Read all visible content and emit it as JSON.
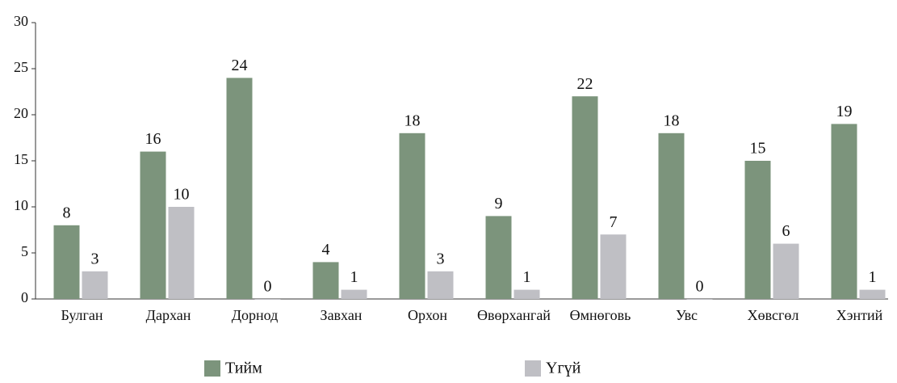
{
  "chart_data": {
    "type": "bar",
    "categories": [
      "Булган",
      "Дархан",
      "Дорнод",
      "Завхан",
      "Орхон",
      "Өвөрхангай",
      "Өмнөговь",
      "Увс",
      "Хөвсгөл",
      "Хэнтий"
    ],
    "series": [
      {
        "name": "Тийм",
        "color": "#7c947c",
        "values": [
          8,
          16,
          24,
          4,
          18,
          9,
          22,
          18,
          15,
          19
        ]
      },
      {
        "name": "Үгүй",
        "color": "#bfbfc4",
        "values": [
          3,
          10,
          0,
          1,
          3,
          1,
          7,
          0,
          6,
          1
        ]
      }
    ],
    "ylim": [
      0,
      30
    ],
    "yticks": [
      0,
      5,
      10,
      15,
      20,
      25,
      30
    ],
    "grid": false,
    "legend": "bottom"
  }
}
